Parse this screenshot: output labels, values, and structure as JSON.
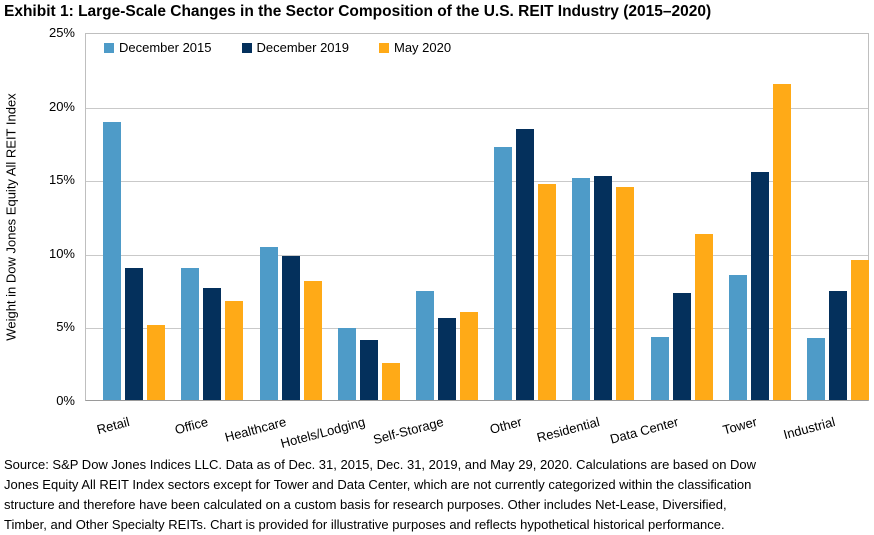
{
  "title": "Exhibit 1: Large-Scale Changes in the Sector Composition of the U.S. REIT Industry (2015–2020)",
  "chart_data": {
    "type": "bar",
    "categories": [
      "Retail",
      "Office",
      "Healthcare",
      "Hotels/Lodging",
      "Self-Storage",
      "Other",
      "Residential",
      "Data Center",
      "Tower",
      "Industrial"
    ],
    "series": [
      {
        "name": "December 2015",
        "color": "#4E9BC8",
        "values": [
          18.9,
          9.0,
          10.4,
          4.9,
          7.4,
          17.2,
          15.1,
          4.3,
          8.5,
          4.2
        ]
      },
      {
        "name": "December 2019",
        "color": "#04305C",
        "values": [
          9.0,
          7.6,
          9.8,
          4.1,
          5.6,
          18.4,
          15.2,
          7.3,
          15.5,
          7.4
        ]
      },
      {
        "name": "May 2020",
        "color": "#FFAA17",
        "values": [
          5.1,
          6.7,
          8.1,
          2.5,
          6.0,
          14.7,
          14.5,
          11.3,
          21.5,
          9.5
        ]
      }
    ],
    "title": "Exhibit 1: Large-Scale Changes in the Sector Composition of the U.S. REIT Industry (2015–2020)",
    "xlabel": "",
    "ylabel": "Weight in Dow Jones Equity All REIT Index",
    "ylim": [
      0,
      25
    ],
    "yticks": [
      "0%",
      "5%",
      "10%",
      "15%",
      "20%",
      "25%"
    ],
    "grid": true,
    "legend_position": "top"
  },
  "colors": {
    "gridline": "#C9C9C9",
    "axis_line": "#9A9A9A",
    "plot_border": "#BFBFBF"
  },
  "source_note": {
    "lines": [
      "Source: S&P Dow Jones Indices LLC. Data as of Dec. 31, 2015, Dec. 31, 2019, and May 29, 2020. Calculations are based on Dow",
      "Jones Equity All REIT Index sectors except for Tower and Data Center, which are not currently categorized within the classification",
      "structure and therefore have been calculated on a custom basis for research purposes. Other includes Net-Lease, Diversified,",
      "Timber, and Other Specialty REITs. Chart is provided for illustrative purposes and reflects hypothetical historical performance."
    ]
  }
}
